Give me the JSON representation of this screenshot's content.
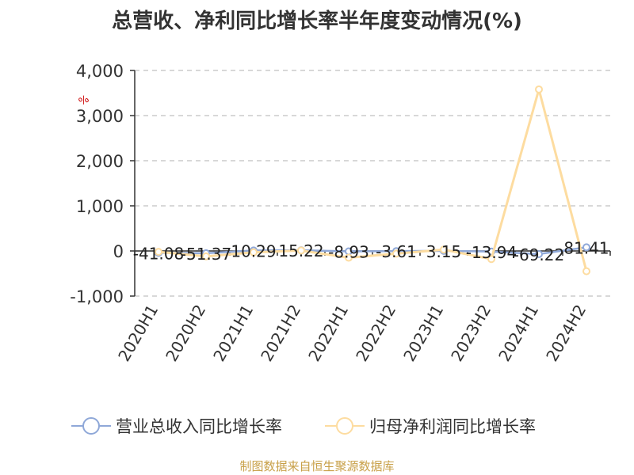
{
  "title": "总营收、净利同比增长率半年度变动情况(%)",
  "unit": "%",
  "source": "制图数据来自恒生聚源数据库",
  "chart_data": {
    "type": "line",
    "title": "总营收、净利同比增长率半年度变动情况(%)",
    "categories": [
      "2020H1",
      "2020H2",
      "2021H1",
      "2021H2",
      "2022H1",
      "2022H2",
      "2023H1",
      "2023H2",
      "2024H1",
      "2024H2"
    ],
    "yticks": [
      -1000,
      0,
      1000,
      2000,
      3000,
      4000
    ],
    "ytick_labels": [
      "-1,000",
      "0",
      "1,000",
      "2,000",
      "3,000",
      "4,000"
    ],
    "ylim": [
      -1000,
      4000
    ],
    "grid": true,
    "legend_position": "bottom",
    "series": [
      {
        "name": "营业总收入同比增长率",
        "color": "#8fa8d8",
        "values": [
          -41.08,
          -51.37,
          10.29,
          15.22,
          -8.93,
          -3.61,
          3.15,
          -13.94,
          -69.22,
          81.41
        ],
        "labels": [
          "-41.08",
          "-51.37",
          "10.29",
          "15.22",
          "-8.93",
          "-3.61",
          "3.15",
          "-13.94",
          "-69.22",
          "81.41"
        ]
      },
      {
        "name": "归母净利润同比增长率",
        "color": "#fddca0",
        "values": [
          -20,
          -120,
          -30,
          10,
          -150,
          -60,
          30,
          -180,
          3580,
          -450
        ]
      }
    ]
  }
}
